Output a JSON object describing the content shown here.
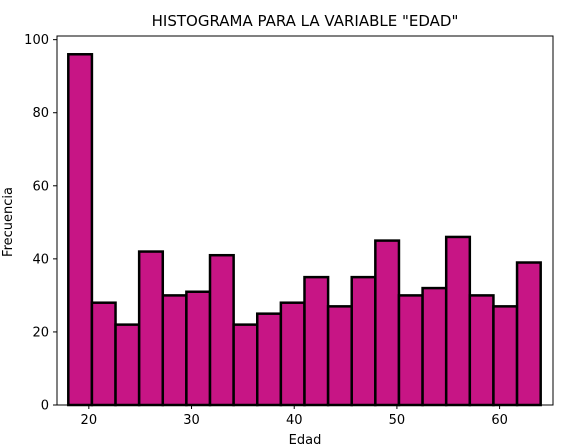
{
  "chart_data": {
    "type": "bar",
    "title": "HISTOGRAMA PARA LA VARIABLE \"EDAD\"",
    "xlabel": "Edad",
    "ylabel": "Frecuencia",
    "xlim": [
      16.9,
      65.2
    ],
    "ylim": [
      0,
      101
    ],
    "xticks": [
      20,
      30,
      40,
      50,
      60
    ],
    "yticks": [
      0,
      20,
      40,
      60,
      80,
      100
    ],
    "bin_edges": [
      18,
      20.3,
      22.6,
      24.9,
      27.2,
      29.5,
      31.8,
      34.1,
      36.4,
      38.7,
      41,
      43.3,
      45.6,
      47.9,
      50.2,
      52.5,
      54.8,
      57.1,
      59.4,
      61.7,
      64
    ],
    "values": [
      96,
      28,
      22,
      42,
      30,
      31,
      41,
      22,
      25,
      28,
      35,
      27,
      35,
      45,
      30,
      32,
      46,
      30,
      27,
      39
    ],
    "bar_color": "#c71585",
    "edge_color": "#000000",
    "grid": false,
    "legend": "none"
  }
}
